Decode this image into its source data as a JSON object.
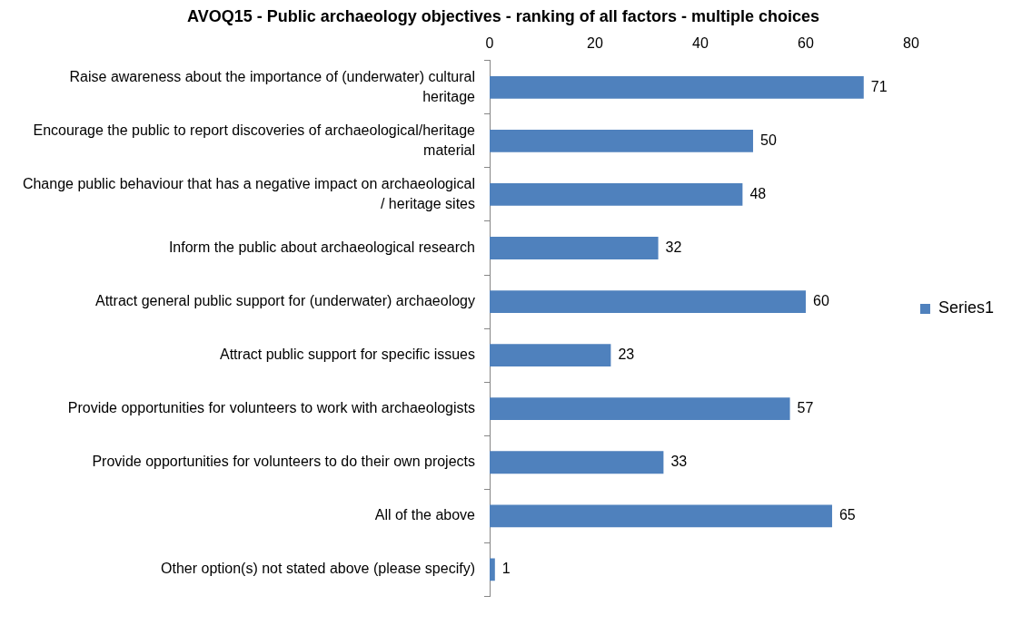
{
  "chart_data": {
    "type": "bar",
    "orientation": "horizontal",
    "title": "AVOQ15 - Public archaeology objectives - ranking of all factors - multiple choices",
    "categories": [
      "Raise awareness about the importance of (underwater) cultural heritage",
      "Encourage the public to report discoveries of archaeological/heritage material",
      "Change public behaviour that has a negative impact on archaeological / heritage sites",
      "Inform the public about archaeological research",
      "Attract general public support for (underwater) archaeology",
      "Attract public support for specific issues",
      "Provide opportunities for volunteers to work with archaeologists",
      "Provide opportunities for volunteers to do their own projects",
      "All of the above",
      "Other option(s) not stated above (please specify)"
    ],
    "series": [
      {
        "name": "Series1",
        "color": "#4f81bd",
        "values": [
          71,
          50,
          48,
          32,
          60,
          23,
          57,
          33,
          65,
          1
        ]
      }
    ],
    "xlim": [
      0,
      80
    ],
    "xticks": [
      0,
      20,
      40,
      60,
      80
    ],
    "grid": false,
    "legend": "right",
    "data_labels": true
  }
}
